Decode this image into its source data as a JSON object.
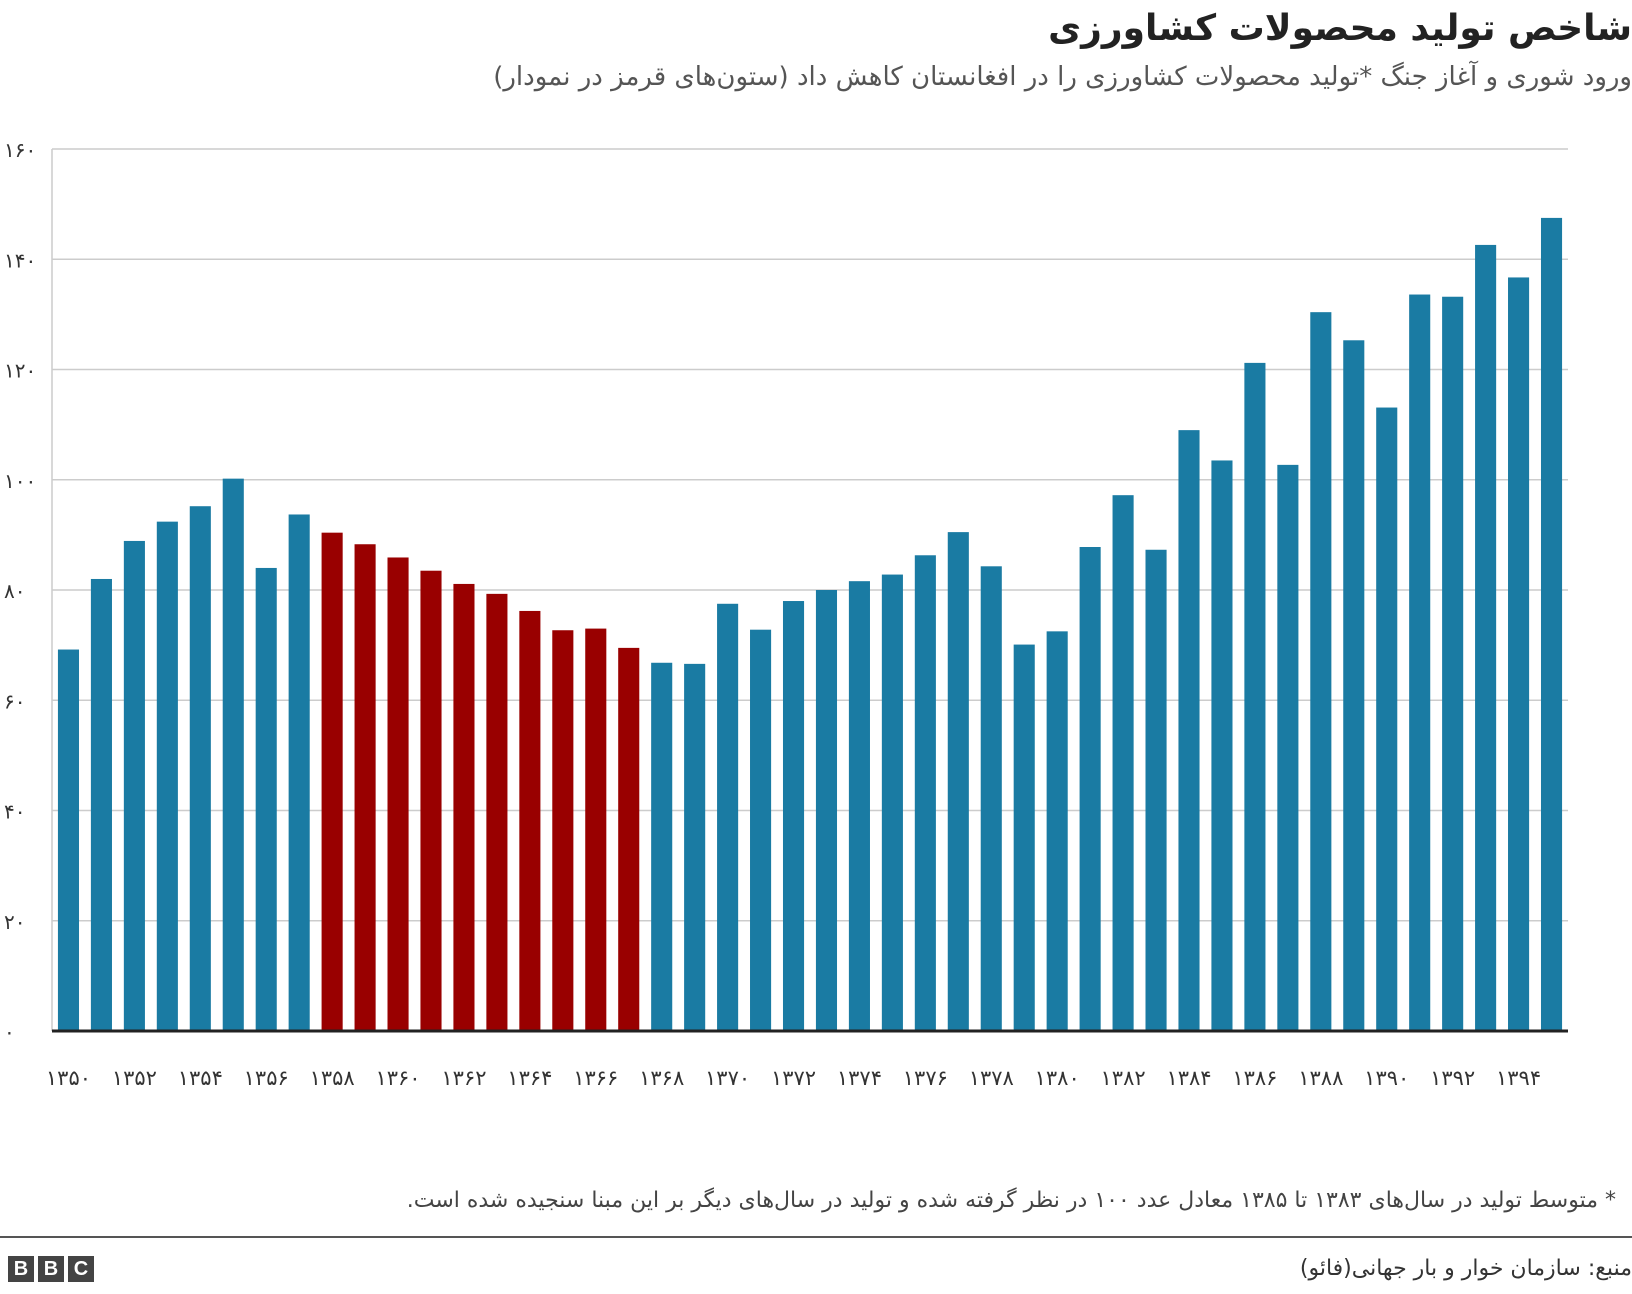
{
  "title": "شاخص تولید محصولات کشاورزی",
  "subtitle": "ورود شوری و آغاز جنگ *تولید محصولات کشاورزی را در افغانستان کاهش داد (ستون‌های قرمز در نمودار)",
  "footnote": "* متوسط تولید در سال‌های ۱۳۸۳ تا ۱۳۸۵ معادل عدد ۱۰۰ در نظر گرفته شده و تولید در سال‌های دیگر بر این مبنا سنجیده شده است.",
  "source": "منبع: سازمان خوار و بار جهانی(فائو)",
  "logo": [
    "B",
    "B",
    "C"
  ],
  "colors": {
    "blue": "#1a7ba3",
    "red": "#990000",
    "grid": "#cccccc",
    "axis": "#222222"
  },
  "chart_data": {
    "type": "bar",
    "title": "شاخص تولید محصولات کشاورزی",
    "ylim": [
      0,
      160
    ],
    "yticks": [
      0,
      20,
      40,
      60,
      80,
      100,
      120,
      140,
      160
    ],
    "ytick_labels": [
      "۰",
      "۲۰",
      "۴۰",
      "۶۰",
      "۸۰",
      "۱۰۰",
      "۱۲۰",
      "۱۴۰",
      "۱۶۰"
    ],
    "grid": true,
    "categories": [
      "۱۳۵۰",
      "۱۳۵۱",
      "۱۳۵۲",
      "۱۳۵۳",
      "۱۳۵۴",
      "۱۳۵۵",
      "۱۳۵۶",
      "۱۳۵۷",
      "۱۳۵۸",
      "۱۳۵۹",
      "۱۳۶۰",
      "۱۳۶۱",
      "۱۳۶۲",
      "۱۳۶۳",
      "۱۳۶۴",
      "۱۳۶۵",
      "۱۳۶۶",
      "۱۳۶۷",
      "۱۳۶۸",
      "۱۳۶۹",
      "۱۳۷۰",
      "۱۳۷۱",
      "۱۳۷۲",
      "۱۳۷۳",
      "۱۳۷۴",
      "۱۳۷۵",
      "۱۳۷۶",
      "۱۳۷۷",
      "۱۳۷۸",
      "۱۳۷۹",
      "۱۳۸۰",
      "۱۳۸۱",
      "۱۳۸۲",
      "۱۳۸۳",
      "۱۳۸۴",
      "۱۳۸۵",
      "۱۳۸۶",
      "۱۳۸۷",
      "۱۳۸۸",
      "۱۳۸۹",
      "۱۳۹۰",
      "۱۳۹۱",
      "۱۳۹۲",
      "۱۳۹۳",
      "۱۳۹۴",
      "۱۳۹۵"
    ],
    "xtick_labels": [
      "۱۳۵۰",
      "",
      "۱۳۵۲",
      "",
      "۱۳۵۴",
      "",
      "۱۳۵۶",
      "",
      "۱۳۵۸",
      "",
      "۱۳۶۰",
      "",
      "۱۳۶۲",
      "",
      "۱۳۶۴",
      "",
      "۱۳۶۶",
      "",
      "۱۳۶۸",
      "",
      "۱۳۷۰",
      "",
      "۱۳۷۲",
      "",
      "۱۳۷۴",
      "",
      "۱۳۷۶",
      "",
      "۱۳۷۸",
      "",
      "۱۳۸۰",
      "",
      "۱۳۸۲",
      "",
      "۱۳۸۴",
      "",
      "۱۳۸۶",
      "",
      "۱۳۸۸",
      "",
      "۱۳۹۰",
      "",
      "۱۳۹۲",
      "",
      "۱۳۹۴",
      ""
    ],
    "values": [
      69.2,
      82.0,
      88.9,
      92.4,
      95.2,
      100.2,
      84.0,
      93.7,
      90.4,
      88.3,
      85.9,
      83.5,
      81.1,
      79.3,
      76.2,
      72.7,
      73.0,
      69.5,
      66.8,
      66.6,
      77.5,
      72.8,
      78.0,
      80.0,
      81.6,
      82.8,
      86.3,
      90.5,
      84.3,
      70.1,
      72.5,
      87.8,
      97.2,
      87.3,
      109.0,
      103.5,
      121.2,
      102.7,
      130.4,
      125.3,
      113.1,
      133.6,
      133.2,
      142.6,
      136.7,
      147.5
    ],
    "highlight": [
      false,
      false,
      false,
      false,
      false,
      false,
      false,
      false,
      true,
      true,
      true,
      true,
      true,
      true,
      true,
      true,
      true,
      true,
      false,
      false,
      false,
      false,
      false,
      false,
      false,
      false,
      false,
      false,
      false,
      false,
      false,
      false,
      false,
      false,
      false,
      false,
      false,
      false,
      false,
      false,
      false,
      false,
      false,
      false,
      false,
      false
    ]
  }
}
